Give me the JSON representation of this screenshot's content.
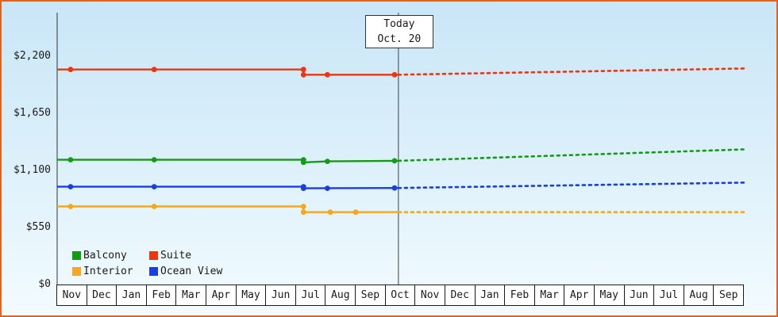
{
  "window": {
    "border_color": "#e0641b"
  },
  "chart_data": {
    "type": "line",
    "title": "",
    "legend_position": "bottom-left",
    "grid": false,
    "today_marker": {
      "line1": "Today",
      "line2": "Oct. 20",
      "position": 11.43
    },
    "x_categories": [
      "Nov",
      "Dec",
      "Jan",
      "Feb",
      "Mar",
      "Apr",
      "May",
      "Jun",
      "Jul",
      "Aug",
      "Sep",
      "Oct",
      "Nov",
      "Dec",
      "Jan",
      "Feb",
      "Mar",
      "Apr",
      "May",
      "Jun",
      "Jul",
      "Aug",
      "Sep"
    ],
    "y_ticks": [
      {
        "label": "$2,200",
        "value": 2200
      },
      {
        "label": "$1,650",
        "value": 1650
      },
      {
        "label": "$1,100",
        "value": 1100
      },
      {
        "label": "$550",
        "value": 550
      },
      {
        "label": "$0",
        "value": 0
      }
    ],
    "ylim": [
      0,
      2200
    ],
    "legend_order": [
      "Balcony",
      "Suite",
      "Interior",
      "Ocean View"
    ],
    "series": [
      {
        "name": "Suite",
        "color": "#f03410",
        "history": [
          [
            0,
            2080
          ],
          [
            8.25,
            2080
          ],
          [
            8.25,
            2030
          ],
          [
            11.43,
            2030
          ]
        ],
        "forecast": [
          [
            11.43,
            2030
          ],
          [
            23,
            2090
          ]
        ],
        "markers": [
          [
            0.45,
            2080
          ],
          [
            3.25,
            2080
          ],
          [
            8.25,
            2080
          ],
          [
            8.25,
            2030
          ],
          [
            9.05,
            2030
          ],
          [
            11.3,
            2030
          ]
        ]
      },
      {
        "name": "Balcony",
        "color": "#149b14",
        "history": [
          [
            0,
            1210
          ],
          [
            8.25,
            1210
          ],
          [
            8.25,
            1185
          ],
          [
            9.05,
            1195
          ],
          [
            11.43,
            1200
          ]
        ],
        "forecast": [
          [
            11.43,
            1200
          ],
          [
            23,
            1310
          ]
        ],
        "markers": [
          [
            0.45,
            1210
          ],
          [
            3.25,
            1210
          ],
          [
            8.25,
            1210
          ],
          [
            8.25,
            1185
          ],
          [
            9.05,
            1195
          ],
          [
            11.3,
            1200
          ]
        ]
      },
      {
        "name": "Ocean View",
        "color": "#1b3de8",
        "history": [
          [
            0,
            950
          ],
          [
            8.25,
            950
          ],
          [
            8.25,
            935
          ],
          [
            11.43,
            938
          ]
        ],
        "forecast": [
          [
            11.43,
            938
          ],
          [
            23,
            990
          ]
        ],
        "markers": [
          [
            0.45,
            950
          ],
          [
            3.25,
            950
          ],
          [
            8.25,
            950
          ],
          [
            8.25,
            935
          ],
          [
            9.05,
            935
          ],
          [
            11.3,
            938
          ]
        ]
      },
      {
        "name": "Interior",
        "color": "#f5a81c",
        "history": [
          [
            0,
            760
          ],
          [
            8.25,
            760
          ],
          [
            8.25,
            705
          ],
          [
            11.43,
            705
          ]
        ],
        "forecast": [
          [
            11.43,
            705
          ],
          [
            23,
            705
          ]
        ],
        "markers": [
          [
            0.45,
            760
          ],
          [
            3.25,
            760
          ],
          [
            8.25,
            760
          ],
          [
            8.25,
            705
          ],
          [
            9.15,
            705
          ],
          [
            10.0,
            705
          ]
        ]
      }
    ]
  }
}
